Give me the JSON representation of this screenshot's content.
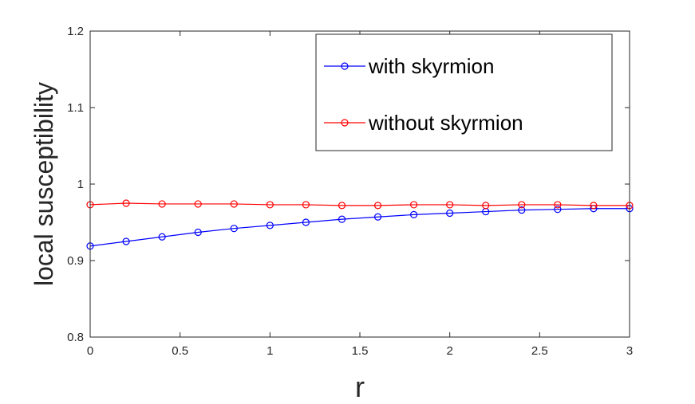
{
  "chart_data": {
    "type": "line",
    "xlabel": "r",
    "ylabel": "local susceptibility",
    "xlim": [
      0,
      3
    ],
    "ylim": [
      0.8,
      1.2
    ],
    "xticks": [
      "0",
      "0.5",
      "1",
      "1.5",
      "2",
      "2.5",
      "3"
    ],
    "yticks": [
      "0.8",
      "0.9",
      "1",
      "1.1",
      "1.2"
    ],
    "grid": false,
    "legend_position": "top-right",
    "x": [
      0,
      0.2,
      0.4,
      0.6,
      0.8,
      1.0,
      1.2,
      1.4,
      1.6,
      1.8,
      2.0,
      2.2,
      2.4,
      2.6,
      2.8,
      3.0
    ],
    "series": [
      {
        "name": "with skyrmion",
        "color": "#0000ff",
        "marker": "circle",
        "values": [
          0.919,
          0.925,
          0.931,
          0.937,
          0.942,
          0.946,
          0.95,
          0.954,
          0.957,
          0.96,
          0.962,
          0.964,
          0.966,
          0.967,
          0.968,
          0.968
        ]
      },
      {
        "name": "without skyrmion",
        "color": "#ff0000",
        "marker": "circle",
        "values": [
          0.973,
          0.975,
          0.974,
          0.974,
          0.974,
          0.973,
          0.973,
          0.972,
          0.972,
          0.973,
          0.973,
          0.972,
          0.973,
          0.973,
          0.972,
          0.972
        ]
      }
    ]
  }
}
